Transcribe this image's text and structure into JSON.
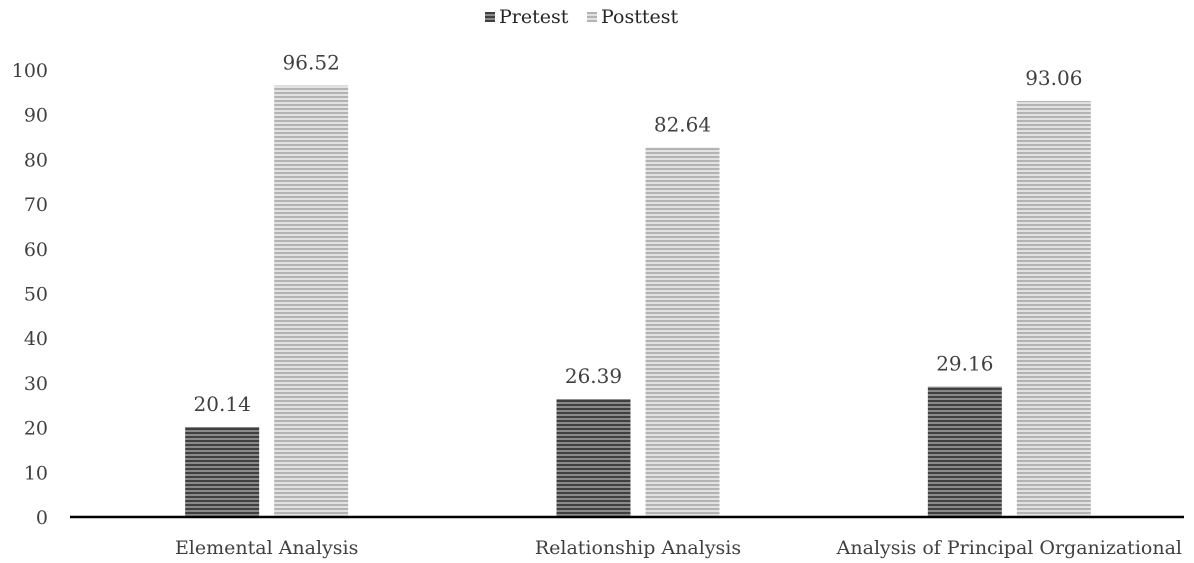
{
  "chart_data": {
    "type": "bar",
    "categories": [
      "Elemental Analysis",
      "Relationship Analysis",
      "Analysis of Principal Organizational"
    ],
    "series": [
      {
        "name": "Pretest",
        "values": [
          20.14,
          26.39,
          29.16
        ],
        "value_labels": [
          "20.14",
          "26.39",
          "29.16"
        ],
        "color": "#555555",
        "pattern": "horizontal-stripes"
      },
      {
        "name": "Posttest",
        "values": [
          96.52,
          82.64,
          93.06
        ],
        "value_labels": [
          "96.52",
          "82.64",
          "93.06"
        ],
        "color": "#bfbfbf",
        "pattern": "horizontal-stripes"
      }
    ],
    "y_ticks": [
      "0",
      "10",
      "20",
      "30",
      "40",
      "50",
      "60",
      "70",
      "80",
      "90",
      "100"
    ],
    "ylim": [
      0,
      100
    ],
    "grid": false,
    "legend": "top-center"
  }
}
